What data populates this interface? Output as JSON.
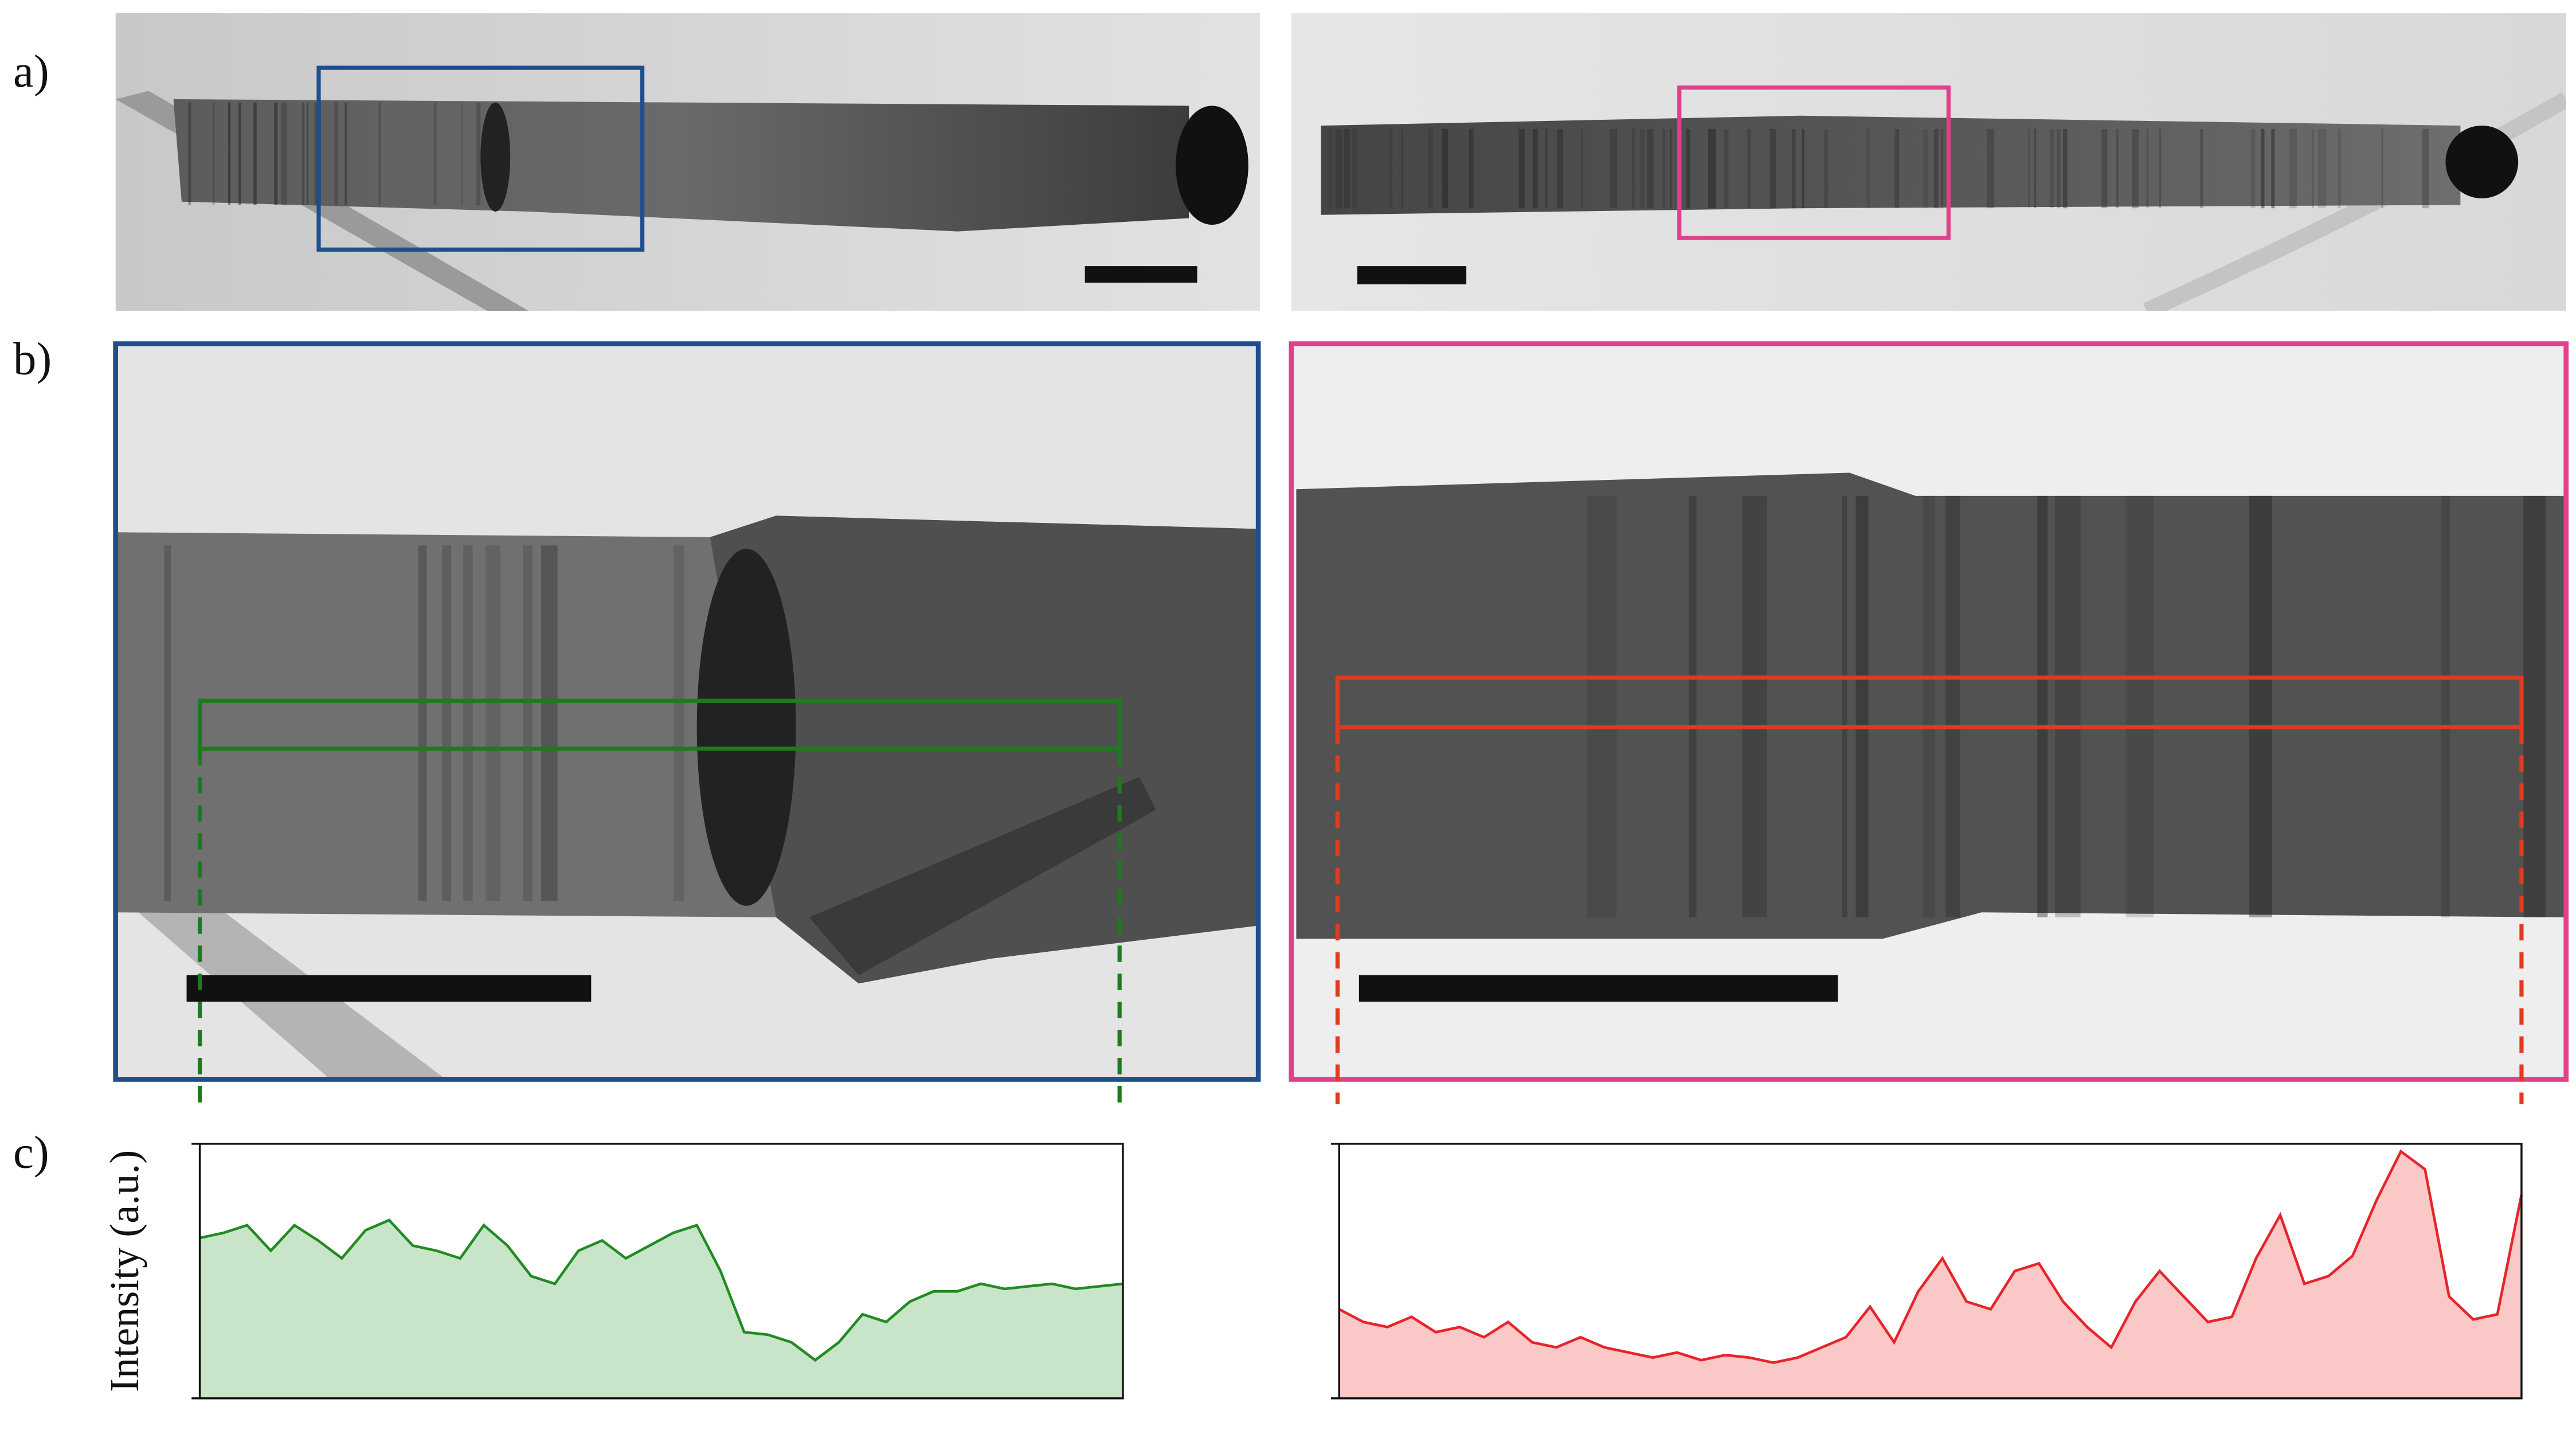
{
  "panel_labels": [
    "a)",
    "b)",
    "c)"
  ],
  "chart_data": [
    {
      "type": "area",
      "ylabel": "Intensity (a.u.)",
      "color": "#228b22",
      "fill": "#c9e5c9",
      "ylim": [
        0,
        1
      ],
      "values": [
        0.63,
        0.65,
        0.68,
        0.58,
        0.68,
        0.62,
        0.55,
        0.66,
        0.7,
        0.6,
        0.58,
        0.55,
        0.68,
        0.6,
        0.48,
        0.45,
        0.58,
        0.62,
        0.55,
        0.6,
        0.65,
        0.68,
        0.5,
        0.26,
        0.25,
        0.22,
        0.15,
        0.22,
        0.33,
        0.3,
        0.38,
        0.42,
        0.42,
        0.45,
        0.43,
        0.44,
        0.45,
        0.43,
        0.44,
        0.45
      ]
    },
    {
      "type": "area",
      "color": "#e8242b",
      "fill": "#fbc8c8",
      "ylim": [
        0,
        1
      ],
      "values": [
        0.35,
        0.3,
        0.28,
        0.32,
        0.26,
        0.28,
        0.24,
        0.3,
        0.22,
        0.2,
        0.24,
        0.2,
        0.18,
        0.16,
        0.18,
        0.15,
        0.17,
        0.16,
        0.14,
        0.16,
        0.2,
        0.24,
        0.36,
        0.22,
        0.42,
        0.55,
        0.38,
        0.35,
        0.5,
        0.53,
        0.38,
        0.28,
        0.2,
        0.38,
        0.5,
        0.4,
        0.3,
        0.32,
        0.55,
        0.72,
        0.45,
        0.48,
        0.56,
        0.78,
        0.97,
        0.9,
        0.4,
        0.31,
        0.33,
        0.8
      ]
    }
  ]
}
